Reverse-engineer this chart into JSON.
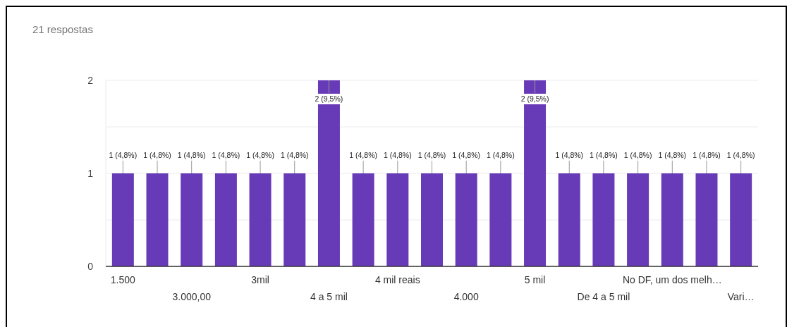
{
  "chart_data": {
    "type": "bar",
    "title": "21 respostas",
    "categories": [
      "1.500",
      null,
      "3.000,00",
      null,
      "3mil",
      null,
      "4 a 5 mil",
      null,
      "4 mil reais",
      null,
      "4.000",
      null,
      "5 mil",
      null,
      "De 4 a 5 mil",
      null,
      "No DF, um dos melh…",
      null,
      "Vari…"
    ],
    "values": [
      1,
      1,
      1,
      1,
      1,
      1,
      2,
      1,
      1,
      1,
      1,
      1,
      2,
      1,
      1,
      1,
      1,
      1,
      1
    ],
    "value_labels": [
      "1 (4,8%)",
      "1 (4,8%)",
      "1 (4,8%)",
      "1 (4,8%)",
      "1 (4,8%)",
      "1 (4,8%)",
      "2 (9,5%)",
      "1 (4,8%)",
      "1 (4,8%)",
      "1 (4,8%)",
      "1 (4,8%)",
      "1 (4,8%)",
      "2 (9,5%)",
      "1 (4,8%)",
      "1 (4,8%)",
      "1 (4,8%)",
      "1 (4,8%)",
      "1 (4,8%)",
      "1 (4,8%)"
    ],
    "color": "#673ab7",
    "ylim": [
      0,
      2
    ],
    "yticks": [
      0,
      {
        "value": 0.5,
        "label": null
      },
      1,
      {
        "value": 1.5,
        "label": null
      },
      2
    ],
    "grid": "y"
  }
}
